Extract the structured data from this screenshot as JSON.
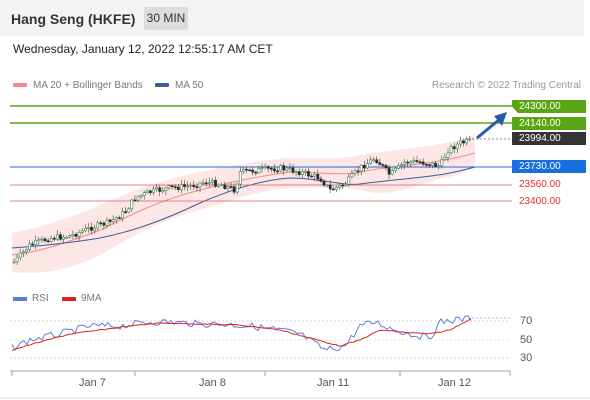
{
  "header": {
    "title": "Hang Seng (HKFE)",
    "timeframe": "30 MIN"
  },
  "timestamp": "Wednesday, January 12, 2022 12:55:17 AM CET",
  "legend": {
    "bollinger_label": "MA 20 + Bollinger Bands",
    "bollinger_color": "#f28a8a",
    "ma50_label": "MA 50",
    "ma50_color": "#3a5e9e"
  },
  "credit": "Research © 2022 Trading Central",
  "levels": {
    "resistance_2": "24300.00",
    "resistance_1": "24140.00",
    "current": "23994.00",
    "pivot": "23730.00",
    "support_1": "23560.00",
    "support_2": "23400.00"
  },
  "rsi_legend": {
    "rsi_label": "RSI",
    "rsi_color": "#5b7fd8",
    "ma_label": "9MA",
    "ma_color": "#e02020"
  },
  "rsi_axis": [
    "70",
    "50",
    "30"
  ],
  "x_axis": [
    "Jan 7",
    "Jan 8",
    "Jan 11",
    "Jan 12"
  ],
  "colors": {
    "resistance": "#5aa514",
    "pivot": "#1a6fe0",
    "support": "#e03030",
    "current": "#333333",
    "arrow": "#2a5ba8"
  }
}
